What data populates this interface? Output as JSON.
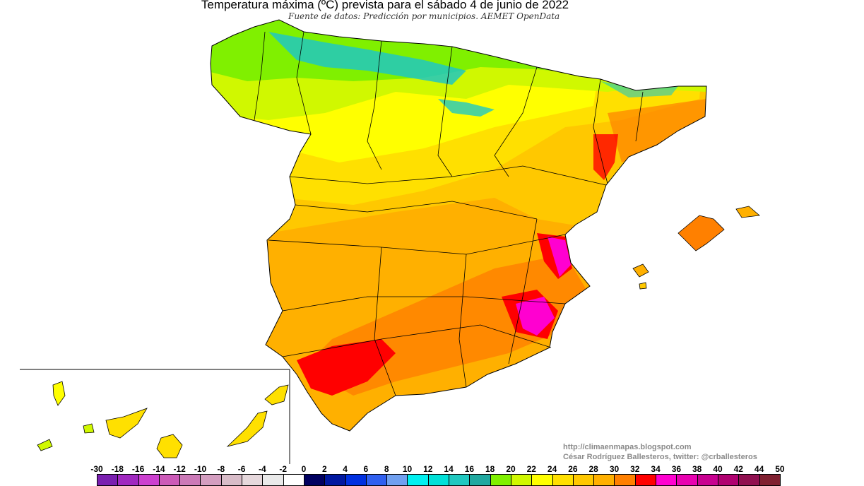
{
  "title": "Temperatura máxima (ºC) prevista para el sábado 4 de junio de 2022",
  "subtitle": "Fuente de datos: Predicción por municipios. AEMET OpenData",
  "credits": {
    "url": "http://climaenmapas.blogspot.com",
    "author": "César Rodríguez Ballesteros, twitter: @crballesteros"
  },
  "legend": {
    "labels": [
      "-30",
      "-18",
      "-16",
      "-14",
      "-12",
      "-10",
      "-8",
      "-6",
      "-4",
      "-2",
      "0",
      "2",
      "4",
      "6",
      "8",
      "10",
      "12",
      "14",
      "16",
      "18",
      "20",
      "22",
      "24",
      "26",
      "28",
      "30",
      "32",
      "34",
      "36",
      "38",
      "40",
      "42",
      "44",
      "50"
    ],
    "colors": [
      "#7a1fb0",
      "#a028c0",
      "#cc40d0",
      "#cc5ab8",
      "#cc7ab8",
      "#d49ec0",
      "#d8bcc8",
      "#e6d8dc",
      "#eaeaea",
      "#ffffff",
      "#000060",
      "#0018a0",
      "#0030e0",
      "#3060f0",
      "#70a0f0",
      "#00f0f0",
      "#00e0d8",
      "#20c8c0",
      "#20a8a0",
      "#80f000",
      "#d0f800",
      "#ffff00",
      "#ffe000",
      "#ffc800",
      "#ffb000",
      "#ff8000",
      "#ff0000",
      "#ff00d0",
      "#e800b0",
      "#c80090",
      "#b00070",
      "#901050",
      "#802030"
    ]
  }
}
